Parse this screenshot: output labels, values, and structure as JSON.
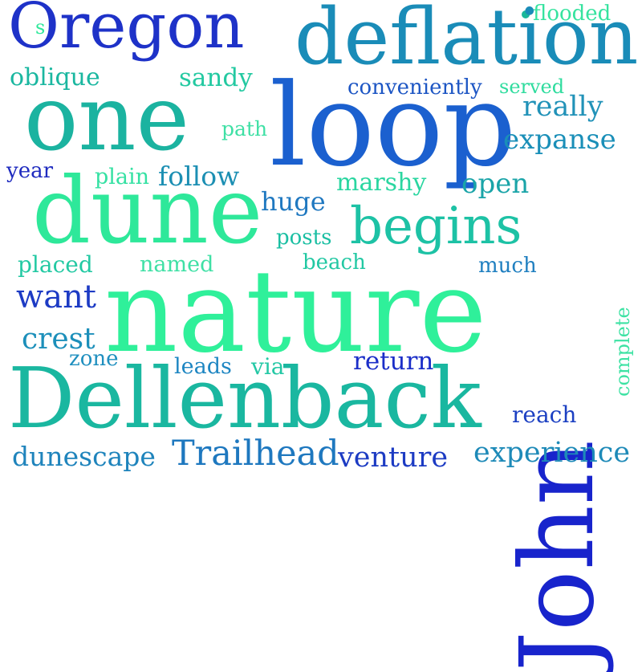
{
  "words": {
    "oregon": "Oregon",
    "s": "s",
    "deflation": "deflation",
    "flooded": "flooded",
    "oblique": "oblique",
    "sandy": "sandy",
    "conveniently": "conveniently",
    "served": "served",
    "one": "one",
    "loop": "loop",
    "really": "really",
    "path": "path",
    "expanse": "expanse",
    "year": "year",
    "plain": "plain",
    "follow": "follow",
    "marshy": "marshy",
    "open": "open",
    "dune": "dune",
    "huge": "huge",
    "begins": "begins",
    "john": "John",
    "posts": "posts",
    "placed": "placed",
    "named": "named",
    "beach": "beach",
    "much": "much",
    "want": "want",
    "nature": "nature",
    "complete": "complete",
    "crest": "crest",
    "zone": "zone",
    "leads": "leads",
    "via": "via",
    "return": "return",
    "dellenback": "Dellenback",
    "reach": "reach",
    "dunescape": "dunescape",
    "trailhead": "Trailhead",
    "venture": "venture",
    "experience": "experience"
  },
  "colors": {
    "background": "#ffffff",
    "navy": "#1f2bbf",
    "blue": "#1a5fcf",
    "teal": "#1e8fb0",
    "aqua": "#1fbf9f",
    "green": "#2ee89a",
    "mint": "#3fe0a5"
  }
}
